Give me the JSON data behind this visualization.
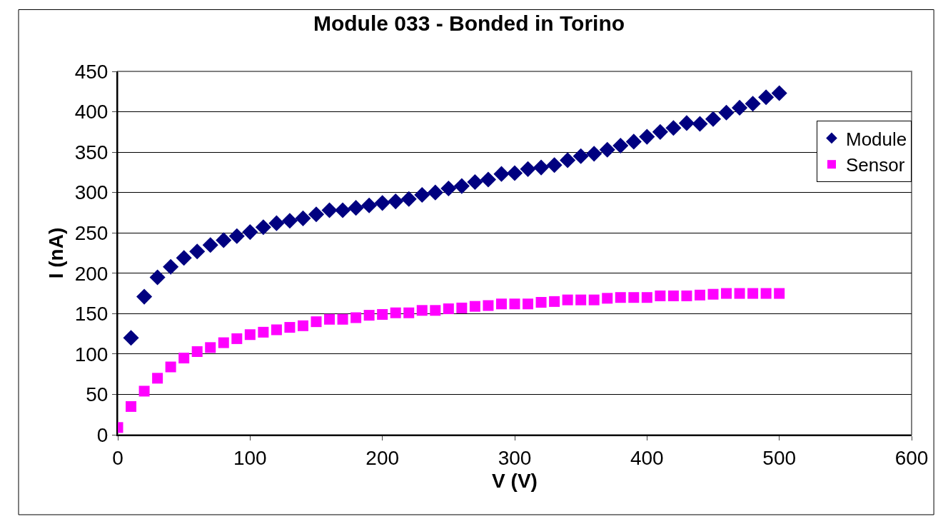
{
  "chart_data": {
    "type": "scatter",
    "title": "Module 033 - Bonded in Torino",
    "xlabel": "V (V)",
    "ylabel": "I (nA)",
    "xlim": [
      0,
      600
    ],
    "xticks": [
      0,
      100,
      200,
      300,
      400,
      500,
      600
    ],
    "ylim": [
      0,
      450
    ],
    "yticks": [
      0,
      50,
      100,
      150,
      200,
      250,
      300,
      350,
      400,
      450
    ],
    "grid": "y",
    "legend": "right",
    "series": [
      {
        "name": "Module",
        "color": "#000080",
        "marker": "diamond",
        "x": [
          10,
          20,
          30,
          40,
          50,
          60,
          70,
          80,
          90,
          100,
          110,
          120,
          130,
          140,
          150,
          160,
          170,
          180,
          190,
          200,
          210,
          220,
          230,
          240,
          250,
          260,
          270,
          280,
          290,
          300,
          310,
          320,
          330,
          340,
          350,
          360,
          370,
          380,
          390,
          400,
          410,
          420,
          430,
          440,
          450,
          460,
          470,
          480,
          490,
          500
        ],
        "values": [
          120,
          171,
          195,
          208,
          219,
          227,
          235,
          241,
          246,
          251,
          257,
          262,
          265,
          268,
          273,
          278,
          278,
          281,
          284,
          287,
          289,
          292,
          297,
          300,
          305,
          308,
          313,
          316,
          323,
          324,
          329,
          331,
          334,
          340,
          345,
          348,
          353,
          358,
          363,
          369,
          375,
          380,
          386,
          385,
          391,
          399,
          405,
          410,
          418,
          423
        ]
      },
      {
        "name": "Sensor",
        "color": "#ff00ff",
        "marker": "square",
        "x": [
          0,
          10,
          20,
          30,
          40,
          50,
          60,
          70,
          80,
          90,
          100,
          110,
          120,
          130,
          140,
          150,
          160,
          170,
          180,
          190,
          200,
          210,
          220,
          230,
          240,
          250,
          260,
          270,
          280,
          290,
          300,
          310,
          320,
          330,
          340,
          350,
          360,
          370,
          380,
          390,
          400,
          410,
          420,
          430,
          440,
          450,
          460,
          470,
          480,
          490,
          500
        ],
        "values": [
          9,
          35,
          54,
          70,
          84,
          95,
          103,
          108,
          114,
          119,
          124,
          127,
          130,
          133,
          135,
          140,
          143,
          143,
          145,
          148,
          149,
          151,
          151,
          154,
          154,
          156,
          157,
          159,
          160,
          162,
          162,
          162,
          164,
          165,
          167,
          167,
          167,
          169,
          170,
          170,
          170,
          172,
          172,
          172,
          173,
          174,
          175,
          175,
          175,
          175,
          175
        ]
      }
    ]
  }
}
